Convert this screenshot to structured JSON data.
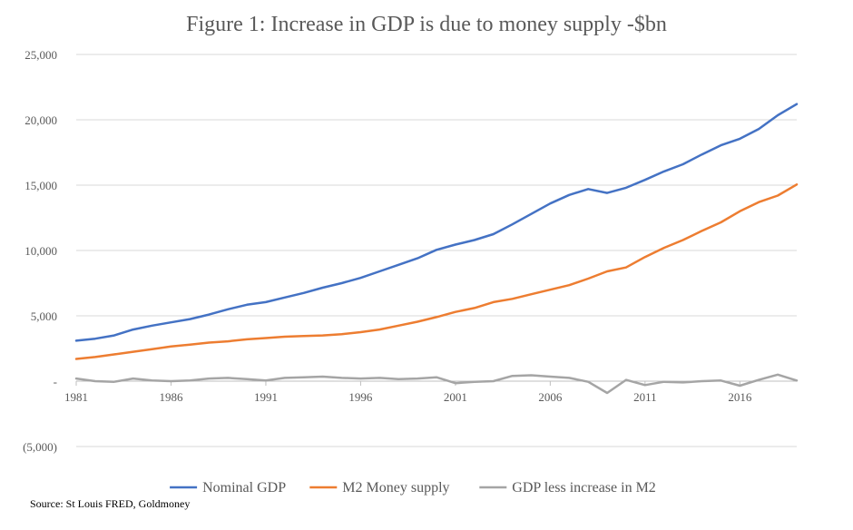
{
  "chart_data": {
    "type": "line",
    "title": "Figure 1: Increase in GDP is due to money supply -$bn",
    "source": "Source: St Louis FRED, Goldmoney",
    "x": [
      1981,
      1982,
      1983,
      1984,
      1985,
      1986,
      1987,
      1988,
      1989,
      1990,
      1991,
      1992,
      1993,
      1994,
      1995,
      1996,
      1997,
      1998,
      1999,
      2000,
      2001,
      2002,
      2003,
      2004,
      2005,
      2006,
      2007,
      2008,
      2009,
      2010,
      2011,
      2012,
      2013,
      2014,
      2015,
      2016,
      2017,
      2018,
      2019
    ],
    "x_tick_labels": [
      "1981",
      "1986",
      "1991",
      "1996",
      "2001",
      "2006",
      "2011",
      "2016"
    ],
    "y_tick_labels": [
      "(5,000)",
      "-",
      "5,000",
      "10,000",
      "15,000",
      "20,000",
      "25,000"
    ],
    "ylim": [
      -5000,
      25000
    ],
    "grid": true,
    "legend_position": "bottom",
    "series": [
      {
        "name": "Nominal GDP",
        "color": "#4472C4",
        "values": [
          3100,
          3250,
          3500,
          3950,
          4250,
          4500,
          4750,
          5100,
          5500,
          5850,
          6050,
          6400,
          6750,
          7150,
          7500,
          7900,
          8400,
          8900,
          9400,
          10050,
          10450,
          10800,
          11250,
          12000,
          12800,
          13600,
          14250,
          14700,
          14400,
          14800,
          15400,
          16050,
          16600,
          17350,
          18050,
          18550,
          19300,
          20350,
          21200
        ]
      },
      {
        "name": "M2 Money supply",
        "color": "#ED7D31",
        "values": [
          1700,
          1850,
          2050,
          2250,
          2450,
          2650,
          2800,
          2950,
          3050,
          3200,
          3300,
          3400,
          3450,
          3500,
          3600,
          3750,
          3950,
          4250,
          4550,
          4900,
          5300,
          5600,
          6050,
          6300,
          6650,
          7000,
          7350,
          7850,
          8400,
          8700,
          9500,
          10200,
          10800,
          11500,
          12150,
          13000,
          13700,
          14200,
          15050
        ]
      },
      {
        "name": "GDP less increase in M2",
        "color": "#A5A5A5",
        "values": [
          200,
          0,
          -50,
          200,
          50,
          0,
          50,
          200,
          250,
          150,
          50,
          250,
          300,
          350,
          250,
          200,
          250,
          150,
          200,
          300,
          -150,
          -50,
          0,
          400,
          450,
          350,
          250,
          -50,
          -900,
          100,
          -300,
          -50,
          -100,
          0,
          50,
          -350,
          100,
          500,
          50
        ]
      }
    ]
  }
}
